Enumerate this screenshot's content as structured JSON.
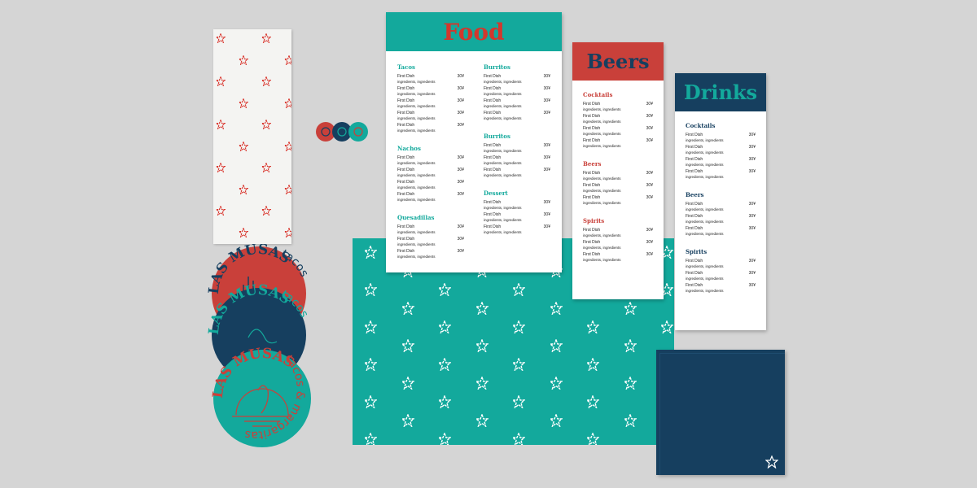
{
  "colors": {
    "teal": "#13a99c",
    "red": "#c9403a",
    "navy": "#163f5f",
    "background": "#d5d5d5"
  },
  "brand": {
    "name": "LAS MUSAS",
    "tagline": "tacos & margaritas",
    "short_tagline": "tacos"
  },
  "menus": {
    "food": {
      "title": "Food",
      "columns": [
        [
          {
            "title": "Tacos",
            "count": 5
          },
          {
            "title": "Nachos",
            "count": 4
          },
          {
            "title": "Quesadillas",
            "count": 3
          }
        ],
        [
          {
            "title": "Burritos",
            "count": 4
          },
          {
            "title": "Burritos",
            "count": 3
          },
          {
            "title": "Dessert",
            "count": 3
          }
        ]
      ]
    },
    "beers": {
      "title": "Beers",
      "columns": [
        [
          {
            "title": "Cocktails",
            "count": 4
          },
          {
            "title": "Beers",
            "count": 3
          },
          {
            "title": "Spirits",
            "count": 3
          }
        ]
      ]
    },
    "drinks": {
      "title": "Drinks",
      "columns": [
        [
          {
            "title": "Cocktails",
            "count": 4
          },
          {
            "title": "Beers",
            "count": 3
          },
          {
            "title": "Spirits",
            "count": 3
          }
        ]
      ]
    }
  },
  "item": {
    "name": "First Dish",
    "ingredients": "ingredients, ingredients",
    "price": "30¥"
  },
  "icons": {
    "pattern": "star-outline-icon"
  }
}
